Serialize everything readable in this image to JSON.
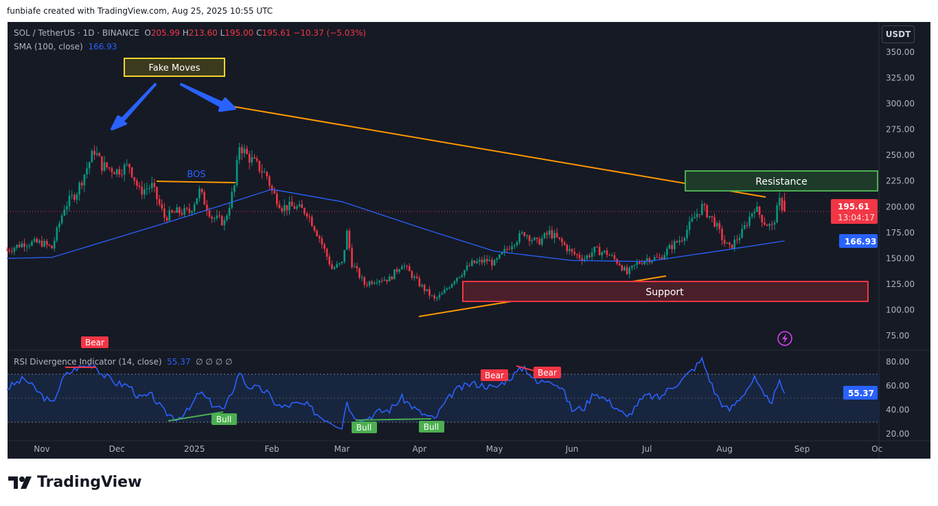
{
  "header": {
    "credit": "funbiafe created with TradingView.com, Aug 25, 2025 10:55 UTC"
  },
  "legend": {
    "symbol": "SOL / TetherUS · 1D · BINANCE",
    "o_label": "O",
    "o": "205.99",
    "h_label": "H",
    "h": "213.60",
    "l_label": "L",
    "l": "195.00",
    "c_label": "C",
    "c": "195.61",
    "change": "−10.37 (−5.03%)",
    "sma_label": "SMA (100, close)",
    "sma_value": "166.93",
    "rsi_label": "RSI Divergence Indicator (14, close)",
    "rsi_value": "55.37",
    "rsi_extra": "∅ ∅ ∅ ∅"
  },
  "currency_button": "USDT",
  "price_badge": {
    "price": "195.61",
    "countdown": "13:04:17"
  },
  "sma_badge": "166.93",
  "rsi_badge": "55.37",
  "annotations": {
    "fake_moves": "Fake Moves",
    "bos": "BOS",
    "resistance": "Resistance",
    "support": "Support",
    "bear": "Bear",
    "bull": "Bull"
  },
  "footer": {
    "brand": "TradingView"
  },
  "colors": {
    "up": "#089981",
    "down": "#f23645",
    "sma": "#2962ff",
    "rsi": "#2962ff",
    "trendline": "#ff9800",
    "background": "#161a25"
  },
  "chart_data": [
    {
      "type": "candlestick",
      "title": "SOL / TetherUS · 1D · BINANCE",
      "ylim": [
        75,
        350
      ],
      "y_ticks": [
        "75.00",
        "100.00",
        "125.00",
        "150.00",
        "175.00",
        "200.00",
        "225.00",
        "250.00",
        "275.00",
        "300.00",
        "325.00",
        "350.00"
      ],
      "x_ticks": [
        "Nov",
        "Dec",
        "2025",
        "Feb",
        "Mar",
        "Apr",
        "May",
        "Jun",
        "Jul",
        "Aug",
        "Sep",
        "Oc"
      ],
      "grid": false,
      "close_approx": [
        [
          "2024-10-18",
          158
        ],
        [
          "2024-10-25",
          165
        ],
        [
          "2024-11-01",
          165
        ],
        [
          "2024-11-05",
          160
        ],
        [
          "2024-11-10",
          200
        ],
        [
          "2024-11-15",
          215
        ],
        [
          "2024-11-22",
          255
        ],
        [
          "2024-11-25",
          240
        ],
        [
          "2024-12-01",
          235
        ],
        [
          "2024-12-06",
          240
        ],
        [
          "2024-12-10",
          215
        ],
        [
          "2024-12-15",
          220
        ],
        [
          "2024-12-20",
          190
        ],
        [
          "2024-12-25",
          195
        ],
        [
          "2024-12-30",
          195
        ],
        [
          "2025-01-03",
          215
        ],
        [
          "2025-01-08",
          190
        ],
        [
          "2025-01-13",
          185
        ],
        [
          "2025-01-17",
          220
        ],
        [
          "2025-01-19",
          260
        ],
        [
          "2025-01-22",
          250
        ],
        [
          "2025-01-26",
          240
        ],
        [
          "2025-01-30",
          230
        ],
        [
          "2025-02-01",
          215
        ],
        [
          "2025-02-05",
          200
        ],
        [
          "2025-02-10",
          200
        ],
        [
          "2025-02-15",
          195
        ],
        [
          "2025-02-20",
          170
        ],
        [
          "2025-02-25",
          140
        ],
        [
          "2025-03-01",
          145
        ],
        [
          "2025-03-03",
          175
        ],
        [
          "2025-03-05",
          145
        ],
        [
          "2025-03-10",
          125
        ],
        [
          "2025-03-15",
          130
        ],
        [
          "2025-03-20",
          130
        ],
        [
          "2025-03-25",
          145
        ],
        [
          "2025-04-01",
          125
        ],
        [
          "2025-04-07",
          110
        ],
        [
          "2025-04-10",
          115
        ],
        [
          "2025-04-15",
          130
        ],
        [
          "2025-04-22",
          145
        ],
        [
          "2025-04-28",
          148
        ],
        [
          "2025-05-01",
          145
        ],
        [
          "2025-05-08",
          165
        ],
        [
          "2025-05-13",
          175
        ],
        [
          "2025-05-18",
          165
        ],
        [
          "2025-05-23",
          175
        ],
        [
          "2025-05-28",
          165
        ],
        [
          "2025-06-01",
          155
        ],
        [
          "2025-06-06",
          150
        ],
        [
          "2025-06-10",
          158
        ],
        [
          "2025-06-15",
          155
        ],
        [
          "2025-06-20",
          145
        ],
        [
          "2025-06-23",
          135
        ],
        [
          "2025-06-27",
          145
        ],
        [
          "2025-07-01",
          150
        ],
        [
          "2025-07-06",
          150
        ],
        [
          "2025-07-10",
          160
        ],
        [
          "2025-07-15",
          170
        ],
        [
          "2025-07-20",
          190
        ],
        [
          "2025-07-23",
          200
        ],
        [
          "2025-07-28",
          185
        ],
        [
          "2025-08-01",
          165
        ],
        [
          "2025-08-03",
          160
        ],
        [
          "2025-08-08",
          175
        ],
        [
          "2025-08-13",
          200
        ],
        [
          "2025-08-17",
          185
        ],
        [
          "2025-08-20",
          180
        ],
        [
          "2025-08-23",
          205
        ],
        [
          "2025-08-25",
          195.61
        ]
      ],
      "last": {
        "open": 205.99,
        "high": 213.6,
        "low": 195.0,
        "close": 195.61
      },
      "series": [
        {
          "name": "SMA (100, close)",
          "values": [
            [
              "2024-10-18",
              150
            ],
            [
              "2024-11-05",
              151
            ],
            [
              "2024-12-01",
              170
            ],
            [
              "2025-01-01",
              193
            ],
            [
              "2025-02-01",
              217
            ],
            [
              "2025-03-01",
              205
            ],
            [
              "2025-04-01",
              180
            ],
            [
              "2025-05-01",
              157
            ],
            [
              "2025-06-01",
              148
            ],
            [
              "2025-07-01",
              147
            ],
            [
              "2025-08-01",
              158
            ],
            [
              "2025-08-25",
              166.93
            ]
          ]
        }
      ]
    },
    {
      "type": "line",
      "title": "RSI Divergence Indicator (14, close)",
      "ylim": [
        20,
        80
      ],
      "y_ticks": [
        "20.00",
        "40.00",
        "60.00",
        "80.00"
      ],
      "bands": [
        30,
        70
      ],
      "series": [
        {
          "name": "RSI",
          "values": [
            [
              "2024-10-18",
              58
            ],
            [
              "2024-10-25",
              66
            ],
            [
              "2024-11-01",
              52
            ],
            [
              "2024-11-05",
              45
            ],
            [
              "2024-11-10",
              68
            ],
            [
              "2024-11-15",
              75
            ],
            [
              "2024-11-22",
              78
            ],
            [
              "2024-11-25",
              70
            ],
            [
              "2024-12-01",
              62
            ],
            [
              "2024-12-06",
              60
            ],
            [
              "2024-12-10",
              50
            ],
            [
              "2024-12-15",
              52
            ],
            [
              "2024-12-20",
              38
            ],
            [
              "2024-12-25",
              33
            ],
            [
              "2024-12-30",
              40
            ],
            [
              "2025-01-03",
              55
            ],
            [
              "2025-01-08",
              45
            ],
            [
              "2025-01-13",
              40
            ],
            [
              "2025-01-17",
              60
            ],
            [
              "2025-01-19",
              72
            ],
            [
              "2025-01-22",
              60
            ],
            [
              "2025-01-26",
              58
            ],
            [
              "2025-01-30",
              55
            ],
            [
              "2025-02-01",
              48
            ],
            [
              "2025-02-05",
              42
            ],
            [
              "2025-02-10",
              45
            ],
            [
              "2025-02-15",
              44
            ],
            [
              "2025-02-20",
              35
            ],
            [
              "2025-02-25",
              30
            ],
            [
              "2025-03-01",
              26
            ],
            [
              "2025-03-03",
              48
            ],
            [
              "2025-03-05",
              36
            ],
            [
              "2025-03-10",
              32
            ],
            [
              "2025-03-15",
              38
            ],
            [
              "2025-03-20",
              40
            ],
            [
              "2025-03-25",
              50
            ],
            [
              "2025-04-01",
              38
            ],
            [
              "2025-04-07",
              32
            ],
            [
              "2025-04-10",
              42
            ],
            [
              "2025-04-15",
              56
            ],
            [
              "2025-04-22",
              62
            ],
            [
              "2025-04-28",
              60
            ],
            [
              "2025-05-01",
              58
            ],
            [
              "2025-05-08",
              68
            ],
            [
              "2025-05-13",
              76
            ],
            [
              "2025-05-18",
              62
            ],
            [
              "2025-05-23",
              66
            ],
            [
              "2025-05-28",
              58
            ],
            [
              "2025-06-01",
              40
            ],
            [
              "2025-06-06",
              42
            ],
            [
              "2025-06-10",
              55
            ],
            [
              "2025-06-15",
              48
            ],
            [
              "2025-06-20",
              40
            ],
            [
              "2025-06-23",
              33
            ],
            [
              "2025-06-27",
              45
            ],
            [
              "2025-07-01",
              52
            ],
            [
              "2025-07-06",
              50
            ],
            [
              "2025-07-10",
              58
            ],
            [
              "2025-07-15",
              65
            ],
            [
              "2025-07-20",
              75
            ],
            [
              "2025-07-23",
              82
            ],
            [
              "2025-07-28",
              55
            ],
            [
              "2025-08-01",
              42
            ],
            [
              "2025-08-03",
              40
            ],
            [
              "2025-08-08",
              52
            ],
            [
              "2025-08-13",
              66
            ],
            [
              "2025-08-17",
              50
            ],
            [
              "2025-08-20",
              48
            ],
            [
              "2025-08-23",
              62
            ],
            [
              "2025-08-25",
              55.37
            ]
          ]
        }
      ]
    }
  ]
}
